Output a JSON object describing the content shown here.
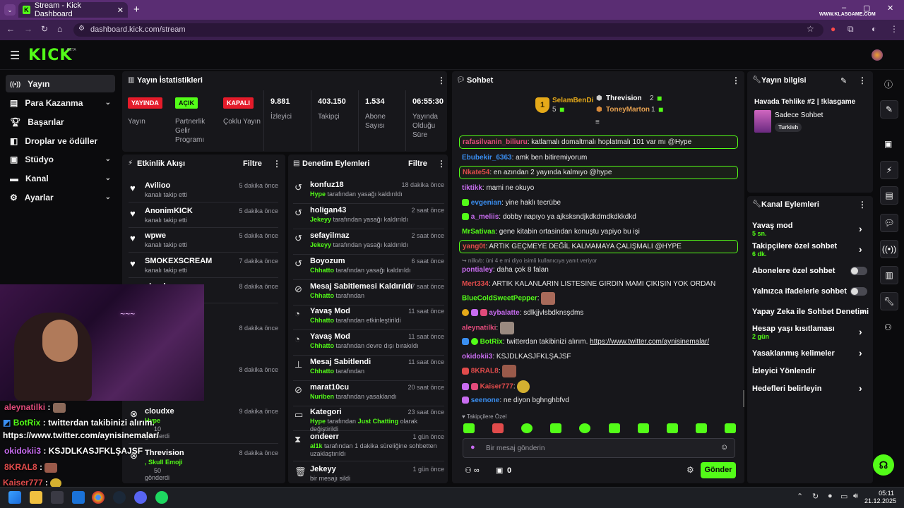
{
  "browser": {
    "tab_title": "Stream - Kick Dashboard",
    "url": "dashboard.kick.com/stream",
    "watermark": "WWW.KLASGAME.COM"
  },
  "header": {
    "logo": "KICK",
    "beta": "BETA"
  },
  "sidebar": {
    "items": [
      {
        "label": "Yayın"
      },
      {
        "label": "Para Kazanma"
      },
      {
        "label": "Başarılar"
      },
      {
        "label": "Droplar ve ödüller"
      },
      {
        "label": "Stüdyo"
      },
      {
        "label": "Kanal"
      },
      {
        "label": "Ayarlar"
      }
    ]
  },
  "stats": {
    "title": "Yayın İstatistikleri",
    "items": [
      {
        "badge": "YAYINDA",
        "label": "Yayın",
        "color": "#e51b2a"
      },
      {
        "badge": "AÇIK",
        "label": "Partnerlik Gelir Programı",
        "color": "#53fc18"
      },
      {
        "badge": "KAPALI",
        "label": "Çoklu Yayın",
        "color": "#e51b2a"
      },
      {
        "value": "9.881",
        "label": "İzleyici"
      },
      {
        "value": "403.150",
        "label": "Takipçi"
      },
      {
        "value": "1.534",
        "label": "Abone Sayısı"
      },
      {
        "value": "06:55:30",
        "label": "Yayında Olduğu Süre"
      }
    ]
  },
  "activity": {
    "title": "Etkinlik Akışı",
    "filter": "Filtre",
    "items": [
      {
        "name": "Avilioo",
        "sub": "kanalı takip etti",
        "time": "5 dakika önce"
      },
      {
        "name": "AnonimKICK",
        "sub": "kanalı takip etti",
        "time": "5 dakika önce"
      },
      {
        "name": "wpwe",
        "sub": "kanalı takip etti",
        "time": "5 dakika önce"
      },
      {
        "name": "SMOKEXSCREAM",
        "sub": "kanalı takip etti",
        "time": "7 dakika önce"
      },
      {
        "name": "cloudxe",
        "sub": "",
        "time": "8 dakika önce"
      },
      {
        "time": "8 dakika önce"
      },
      {
        "time": "8 dakika önce"
      },
      {
        "name": "cloudxe",
        "sub1": "Hype",
        "sub2": "10",
        "sub3": "gönderdi",
        "time": "9 dakika önce"
      },
      {
        "name": "Threvision",
        "sub1": ", Skull Emoji",
        "sub2": "50",
        "sub3": "gönderdi",
        "time": "8 dakika önce"
      }
    ]
  },
  "moderation": {
    "title": "Denetim Eylemleri",
    "filter": "Filtre",
    "items": [
      {
        "name": "konfuz18",
        "actor": "Hype",
        "text": " tarafından yasağı kaldırıldı",
        "time": "18 dakika önce"
      },
      {
        "name": "holigan43",
        "actor": "Jekeyy",
        "text": " tarafından yasağı kaldırıldı",
        "time": "2 saat önce"
      },
      {
        "name": "sefayilmaz",
        "actor": "Jekeyy",
        "text": " tarafından yasağı kaldırıldı",
        "time": "2 saat önce"
      },
      {
        "name": "Boyozum",
        "actor": "Chhatto",
        "text": " tarafından yasağı kaldırıldı",
        "time": "6 saat önce"
      },
      {
        "name": "Mesaj Sabitlemesi Kaldırıldı",
        "actor": "Chhatto",
        "text": " tarafından",
        "time": "7 saat önce"
      },
      {
        "name": "Yavaş Mod",
        "actor": "Chhatto",
        "text": " tarafından etkinleştirildi",
        "time": "11 saat önce"
      },
      {
        "name": "Yavaş Mod",
        "actor": "Chhatto",
        "text": " tarafından devre dışı bırakıldı",
        "time": "11 saat önce"
      },
      {
        "name": "Mesaj Sabitlendi",
        "actor": "Chhatto",
        "text": " tarafından",
        "time": "11 saat önce"
      },
      {
        "name": "marat10cu",
        "actor": "Nuriben",
        "text": " tarafından yasaklandı",
        "time": "20 saat önce"
      },
      {
        "name": "Kategori",
        "actor": "Hype",
        "text": " tarafından ",
        "actor2": "Just Chatting",
        "text2": " olarak değiştirildi",
        "time": "23 saat önce"
      },
      {
        "name": "ondeerr",
        "actor": "al1k",
        "text": " tarafından 1 dakika süreliğine sohbetten uzaklaştırıldı",
        "time": "1 gün önce"
      },
      {
        "name": "Jekeyy",
        "actor": "",
        "text": "bir mesajı sildi",
        "time": "1 gün önce"
      }
    ]
  },
  "chat": {
    "title": "Sohbet",
    "leaders": [
      {
        "rank": "1",
        "name": "SelamBenDi",
        "count": "5"
      },
      {
        "name": "Threvision",
        "count": "2"
      },
      {
        "name": "ToneyMarton",
        "count": "1"
      }
    ],
    "messages": [
      {
        "user": "rafasilvanin_biliuru",
        "color": "#e14b7b",
        "text": ": katlamalı domaltmalı hoplatmalı 101 var mı @Hype",
        "hl": true
      },
      {
        "user": "Ebubekir_6363",
        "color": "#3a8ef0",
        "text": ": amk ben bitiremiyorum"
      },
      {
        "user": "Nkate54",
        "color": "#e14b4b",
        "text": ": en azından 2 yayında kalmıyo @hype",
        "hl": true
      },
      {
        "user": "tiktikk",
        "color": "#c86cf0",
        "text": ": mami ne okuyo"
      },
      {
        "user": "evgenian",
        "color": "#3a8ef0",
        "text": ": yine haklı tecrübe"
      },
      {
        "user": "a_meliis",
        "color": "#c86cf0",
        "text": ": dobby napıyo ya ajksksndjkdkdmdkdkkdkd"
      },
      {
        "user": "MrSativaa",
        "color": "#53fc18",
        "text": ": gene kitabin ortasindan konuştu yapiyo bu işi"
      },
      {
        "user": "yang0t",
        "color": "#e14b4b",
        "text": ": ARTIK GEÇMEYE DEĞİL KALMAMAYA ÇALIŞMALI @HYPE",
        "hl": true
      },
      {
        "reply": "↪ nilkvb: üni 4 e mi diyo isimli kullanıcıya yanıt veriyor"
      },
      {
        "user": "pontialey",
        "color": "#c86cf0",
        "text": ": daha çok 8 falan"
      },
      {
        "user": "Mert334",
        "color": "#e14b4b",
        "text": ": ARTIK KALANLARIN LİSTESİNE GİRDİN MAMİ ÇIKIŞIN YOK ORDAN"
      },
      {
        "user": "BlueColdSweetPepper",
        "color": "#53fc18",
        "text": ":"
      },
      {
        "user": "aybalatte",
        "color": "#c86cf0",
        "text": ": sdlkjjvlsbdknsşdms"
      },
      {
        "user": "aleynatilki",
        "color": "#e14b7b",
        "text": ":"
      },
      {
        "user": "BotRix",
        "color": "#53fc18",
        "text": ": twitterdan takibinizi alırım. ",
        "link": "https://www.twitter.com/aynisinemalar/"
      },
      {
        "user": "okidokii3",
        "color": "#c86cf0",
        "text": ": KSJDLKASJFKLŞAJSF"
      },
      {
        "user": "8KRAL8",
        "color": "#e14b4b",
        "text": ":"
      },
      {
        "user": "Kaiser777",
        "color": "#e14b4b",
        "text": ":"
      },
      {
        "user": "seenone",
        "color": "#3a8ef0",
        "text": ": ne diyon bghnghbfvd"
      }
    ],
    "followers_only": "Takipçilere Özel",
    "input_placeholder": "Bir mesaj gönderin",
    "send_label": "Gönder",
    "viewer_count": "0"
  },
  "stream_info": {
    "title": "Yayın bilgisi",
    "stream_title": "Havada Tehlike #2 | !klasgame",
    "category": "Sadece Sohbet",
    "tag": "Turkish"
  },
  "channel_actions": {
    "title": "Kanal Eylemleri",
    "items": [
      {
        "label": "Yavaş mod",
        "sub": "5 sn.",
        "type": "chevron"
      },
      {
        "label": "Takipçilere özel sohbet",
        "sub": "6 dk.",
        "type": "chevron"
      },
      {
        "label": "Abonelere özel sohbet",
        "type": "toggle"
      },
      {
        "label": "Yalnızca ifadelerle sohbet",
        "type": "toggle"
      },
      {
        "label": "Yapay Zeka ile Sohbet Denetimi",
        "type": "external"
      },
      {
        "label": "Hesap yaşı kısıtlaması",
        "sub": "2 gün",
        "type": "chevron"
      },
      {
        "label": "Yasaklanmış kelimeler",
        "type": "chevron"
      },
      {
        "label": "İzleyici Yönlendir",
        "type": "none"
      },
      {
        "label": "Hedefleri belirleyin",
        "type": "chevron"
      }
    ]
  },
  "overlay": {
    "lines": [
      {
        "user": "aleynatilki",
        "text": " :"
      },
      {
        "user": "BotRix",
        "text": " : twitterdan takibinizi alırım."
      },
      {
        "text": "https://www.twitter.com/aynisinemalar/"
      },
      {
        "user": "okidokii3",
        "text": " : KSJDLKASJFKLŞAJSF"
      },
      {
        "user": "8KRAL8",
        "text": " :"
      },
      {
        "user": "Kaiser777",
        "text": " :"
      }
    ]
  },
  "taskbar": {
    "time": "05:11",
    "date": "21.12.2025"
  }
}
